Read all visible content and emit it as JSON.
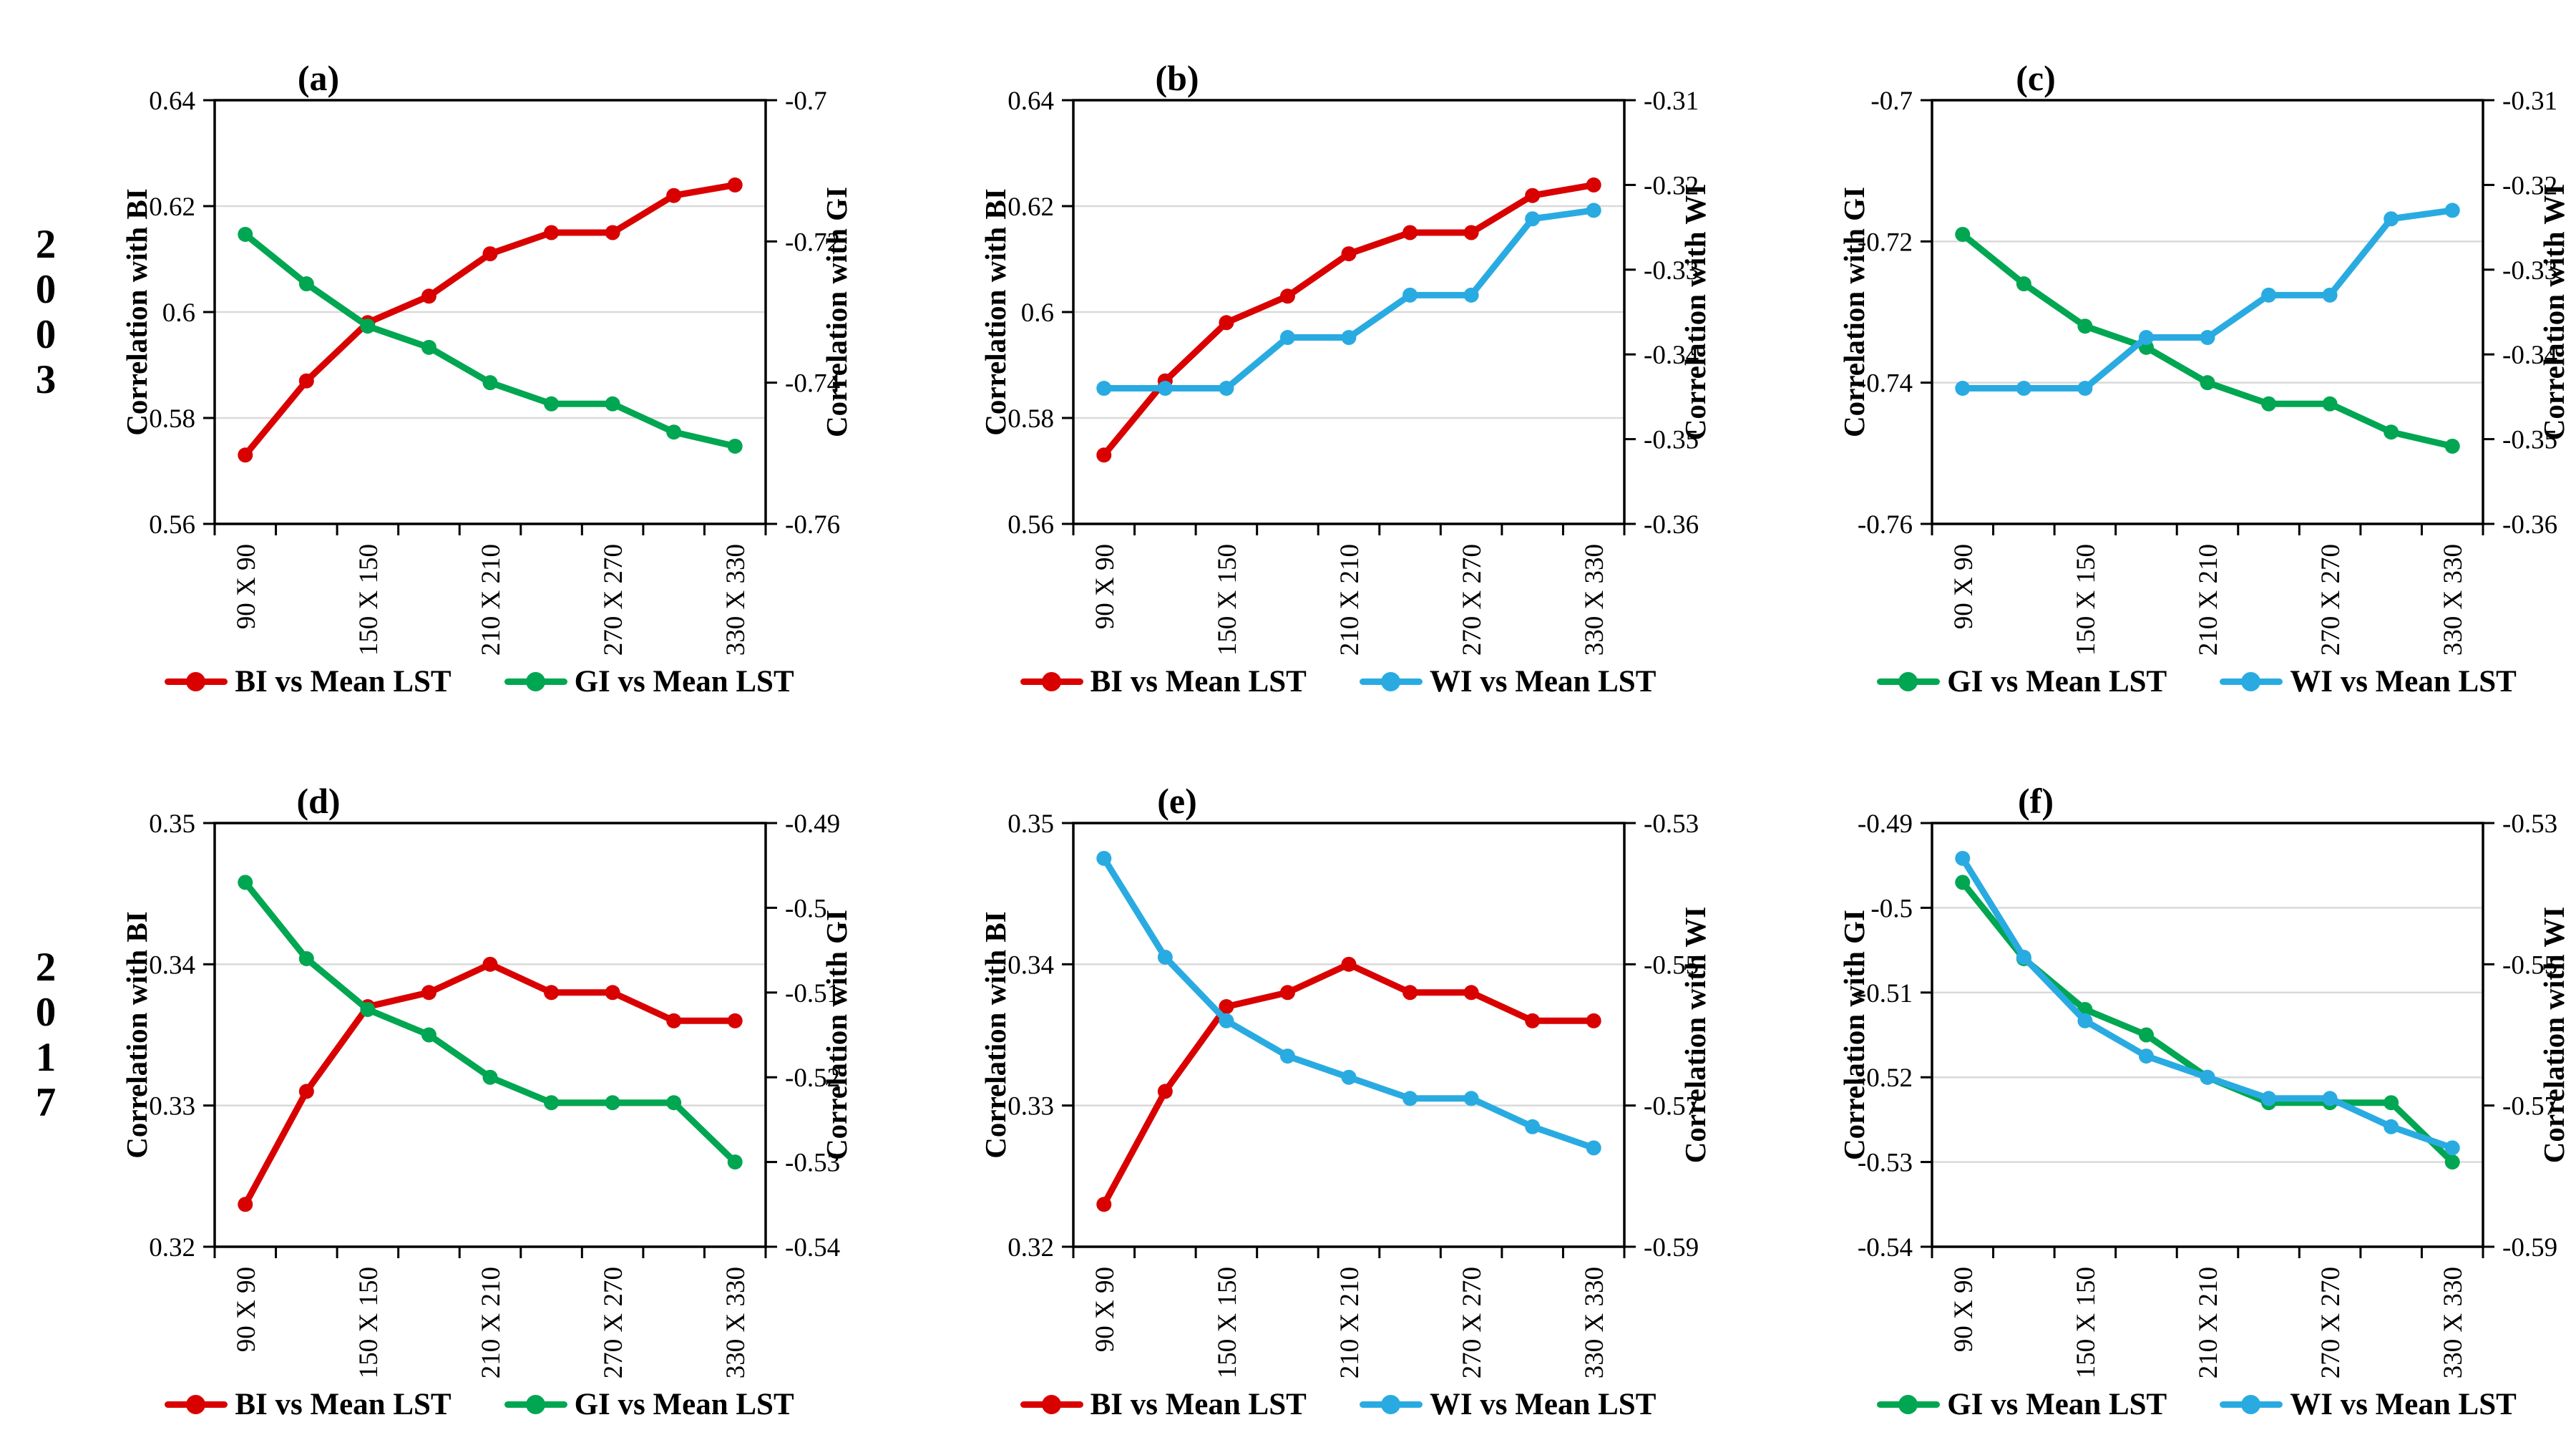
{
  "figure": {
    "background": "#ffffff"
  },
  "years": [
    {
      "label": "2003",
      "digits": [
        "2",
        "0",
        "0",
        "3"
      ]
    },
    {
      "label": "2017",
      "digits": [
        "2",
        "0",
        "1",
        "7"
      ]
    }
  ],
  "colors": {
    "BI": "#D90000",
    "GI": "#00A651",
    "WI": "#29ABE2",
    "grid": "#D9D9D9",
    "axis": "#000000",
    "text": "#000000"
  },
  "x_axis": {
    "labels": [
      "90 X 90",
      "",
      "150 X 150",
      "",
      "210 X 210",
      "",
      "270 X 270",
      "",
      "330 X 330"
    ]
  },
  "chart_data": [
    {
      "panel": "a",
      "label": "(a)",
      "type": "line",
      "year": "2003",
      "left_axis": {
        "title": "Correlation with BI",
        "min": 0.56,
        "max": 0.64,
        "ticks": [
          0.64,
          0.62,
          0.6,
          0.58,
          0.56
        ],
        "tick_labels": [
          "0.64",
          "0.62",
          "0.6",
          "0.58",
          "0.56"
        ]
      },
      "right_axis": {
        "title": "Correlation with GI",
        "min": -0.76,
        "max": -0.7,
        "ticks": [
          -0.7,
          -0.72,
          -0.74,
          -0.76
        ],
        "tick_labels": [
          "-0.7",
          "-0.72",
          "-0.74",
          "-0.76"
        ]
      },
      "series": [
        {
          "name": "BI vs Mean LST",
          "color_key": "BI",
          "axis": "left",
          "values": [
            0.573,
            0.587,
            0.598,
            0.603,
            0.611,
            0.615,
            0.615,
            0.622,
            0.624
          ]
        },
        {
          "name": "GI vs Mean LST",
          "color_key": "GI",
          "axis": "right",
          "values": [
            -0.719,
            -0.726,
            -0.732,
            -0.735,
            -0.74,
            -0.743,
            -0.743,
            -0.747,
            -0.749
          ]
        }
      ]
    },
    {
      "panel": "b",
      "label": "(b)",
      "type": "line",
      "year": "2003",
      "left_axis": {
        "title": "Correlation with BI",
        "min": 0.56,
        "max": 0.64,
        "ticks": [
          0.64,
          0.62,
          0.6,
          0.58,
          0.56
        ],
        "tick_labels": [
          "0.64",
          "0.62",
          "0.6",
          "0.58",
          "0.56"
        ]
      },
      "right_axis": {
        "title": "Correlation with WI",
        "min": -0.36,
        "max": -0.31,
        "ticks": [
          -0.31,
          -0.32,
          -0.33,
          -0.34,
          -0.35,
          -0.36
        ],
        "tick_labels": [
          "-0.31",
          "-0.32",
          "-0.33",
          "-0.34",
          "-0.35",
          "-0.36"
        ]
      },
      "series": [
        {
          "name": "BI vs Mean LST",
          "color_key": "BI",
          "axis": "left",
          "values": [
            0.573,
            0.587,
            0.598,
            0.603,
            0.611,
            0.615,
            0.615,
            0.622,
            0.624
          ]
        },
        {
          "name": "WI vs Mean LST",
          "color_key": "WI",
          "axis": "right",
          "values": [
            -0.344,
            -0.344,
            -0.344,
            -0.338,
            -0.338,
            -0.333,
            -0.333,
            -0.324,
            -0.323
          ]
        }
      ]
    },
    {
      "panel": "c",
      "label": "(c)",
      "type": "line",
      "year": "2003",
      "left_axis": {
        "title": "Correlation with GI",
        "min": -0.76,
        "max": -0.7,
        "ticks": [
          -0.7,
          -0.72,
          -0.74,
          -0.76
        ],
        "tick_labels": [
          "-0.7",
          "-0.72",
          "-0.74",
          "-0.76"
        ]
      },
      "right_axis": {
        "title": "Correlation with WI",
        "min": -0.36,
        "max": -0.31,
        "ticks": [
          -0.31,
          -0.32,
          -0.33,
          -0.34,
          -0.35,
          -0.36
        ],
        "tick_labels": [
          "-0.31",
          "-0.32",
          "-0.33",
          "-0.34",
          "-0.35",
          "-0.36"
        ]
      },
      "series": [
        {
          "name": "GI vs Mean LST",
          "color_key": "GI",
          "axis": "left",
          "values": [
            -0.719,
            -0.726,
            -0.732,
            -0.735,
            -0.74,
            -0.743,
            -0.743,
            -0.747,
            -0.749
          ]
        },
        {
          "name": "WI vs Mean LST",
          "color_key": "WI",
          "axis": "right",
          "values": [
            -0.344,
            -0.344,
            -0.344,
            -0.338,
            -0.338,
            -0.333,
            -0.333,
            -0.324,
            -0.323
          ]
        }
      ]
    },
    {
      "panel": "d",
      "label": "(d)",
      "type": "line",
      "year": "2017",
      "left_axis": {
        "title": "Correlation with BI",
        "min": 0.32,
        "max": 0.35,
        "ticks": [
          0.35,
          0.34,
          0.33,
          0.32
        ],
        "tick_labels": [
          "0.35",
          "0.34",
          "0.33",
          "0.32"
        ]
      },
      "right_axis": {
        "title": "Correlation with GI",
        "min": -0.54,
        "max": -0.49,
        "ticks": [
          -0.49,
          -0.5,
          -0.51,
          -0.52,
          -0.53,
          -0.54
        ],
        "tick_labels": [
          "-0.49",
          "-0.5",
          "-0.51",
          "-0.52",
          "-0.53",
          "-0.54"
        ]
      },
      "series": [
        {
          "name": "BI vs Mean LST",
          "color_key": "BI",
          "axis": "left",
          "values": [
            0.323,
            0.331,
            0.337,
            0.338,
            0.34,
            0.338,
            0.338,
            0.336,
            0.336
          ]
        },
        {
          "name": "GI vs Mean LST",
          "color_key": "GI",
          "axis": "right",
          "values": [
            -0.497,
            -0.506,
            -0.512,
            -0.515,
            -0.52,
            -0.523,
            -0.523,
            -0.523,
            -0.53
          ]
        }
      ]
    },
    {
      "panel": "e",
      "label": "(e)",
      "type": "line",
      "year": "2017",
      "left_axis": {
        "title": "Correlation with BI",
        "min": 0.32,
        "max": 0.35,
        "ticks": [
          0.35,
          0.34,
          0.33,
          0.32
        ],
        "tick_labels": [
          "0.35",
          "0.34",
          "0.33",
          "0.32"
        ]
      },
      "right_axis": {
        "title": "Correlation with WI",
        "min": -0.59,
        "max": -0.53,
        "ticks": [
          -0.53,
          -0.55,
          -0.57,
          -0.59
        ],
        "tick_labels": [
          "-0.53",
          "-0.55",
          "-0.57",
          "-0.59"
        ]
      },
      "series": [
        {
          "name": "BI vs Mean LST",
          "color_key": "BI",
          "axis": "left",
          "values": [
            0.323,
            0.331,
            0.337,
            0.338,
            0.34,
            0.338,
            0.338,
            0.336,
            0.336
          ]
        },
        {
          "name": "WI vs Mean LST",
          "color_key": "WI",
          "axis": "right",
          "values": [
            -0.535,
            -0.549,
            -0.558,
            -0.563,
            -0.566,
            -0.569,
            -0.569,
            -0.573,
            -0.576
          ]
        }
      ]
    },
    {
      "panel": "f",
      "label": "(f)",
      "type": "line",
      "year": "2017",
      "left_axis": {
        "title": "Correlation with GI",
        "min": -0.54,
        "max": -0.49,
        "ticks": [
          -0.49,
          -0.5,
          -0.51,
          -0.52,
          -0.53,
          -0.54
        ],
        "tick_labels": [
          "-0.49",
          "-0.5",
          "-0.51",
          "-0.52",
          "-0.53",
          "-0.54"
        ]
      },
      "right_axis": {
        "title": "Correlation with WI",
        "min": -0.59,
        "max": -0.53,
        "ticks": [
          -0.53,
          -0.55,
          -0.57,
          -0.59
        ],
        "tick_labels": [
          "-0.53",
          "-0.55",
          "-0.57",
          "-0.59"
        ]
      },
      "series": [
        {
          "name": "GI vs Mean LST",
          "color_key": "GI",
          "axis": "left",
          "values": [
            -0.497,
            -0.506,
            -0.512,
            -0.515,
            -0.52,
            -0.523,
            -0.523,
            -0.523,
            -0.53
          ]
        },
        {
          "name": "WI vs Mean LST",
          "color_key": "WI",
          "axis": "right",
          "values": [
            -0.535,
            -0.549,
            -0.558,
            -0.563,
            -0.566,
            -0.569,
            -0.569,
            -0.573,
            -0.576
          ]
        }
      ]
    }
  ]
}
